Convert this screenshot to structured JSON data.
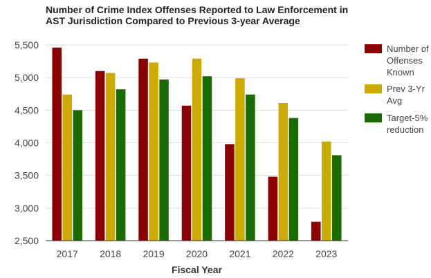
{
  "chart_data": {
    "type": "bar",
    "title": "Number of Crime Index Offenses Reported to Law Enforcement in AST Jurisdiction Compared to Previous 3-year Average",
    "xlabel": "Fiscal Year",
    "ylabel": "",
    "categories": [
      "2017",
      "2018",
      "2019",
      "2020",
      "2021",
      "2022",
      "2023"
    ],
    "ylim": [
      2500,
      5500
    ],
    "yticks": [
      2500,
      3000,
      3500,
      4000,
      4500,
      5000,
      5500
    ],
    "ytick_labels": [
      "2,500",
      "3,000",
      "3,500",
      "4,000",
      "4,500",
      "5,000",
      "5,500"
    ],
    "grid": true,
    "legend_position": "right",
    "series": [
      {
        "name": "Number of Offenses Known",
        "legend_lines": [
          "Number of",
          "Offenses",
          "Known"
        ],
        "color": "#8b0000",
        "values": [
          5460,
          5100,
          5290,
          4570,
          3980,
          3480,
          2790
        ]
      },
      {
        "name": "Prev 3-Yr Avg",
        "legend_lines": [
          "Prev 3-Yr",
          "Avg"
        ],
        "color": "#ccaa00",
        "values": [
          4740,
          5070,
          5230,
          5290,
          4990,
          4610,
          4020
        ]
      },
      {
        "name": "Target-5% reduction",
        "legend_lines": [
          "Target-5%",
          "reduction"
        ],
        "color": "#1a6b00",
        "values": [
          4500,
          4820,
          4970,
          5020,
          4740,
          4380,
          3810
        ]
      }
    ]
  }
}
